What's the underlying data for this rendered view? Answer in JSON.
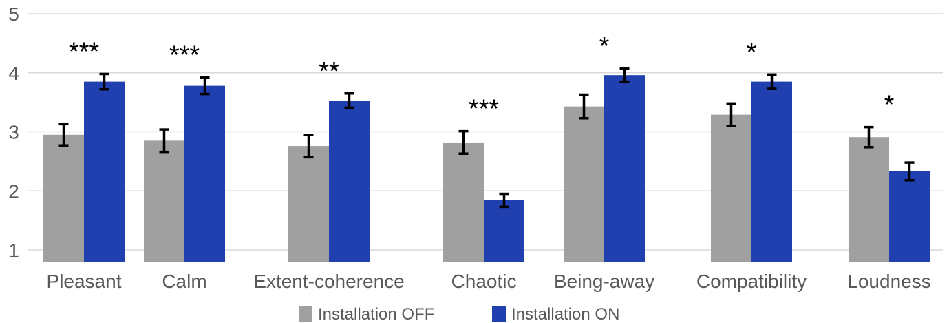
{
  "chart_data": {
    "type": "bar",
    "categories": [
      "Pleasant",
      "Calm",
      "Extent-coherence",
      "Chaotic",
      "Being-away",
      "Compatibility",
      "Loudness"
    ],
    "series": [
      {
        "name": "Installation OFF",
        "color": "#a0a0a0",
        "values": [
          2.95,
          2.85,
          2.76,
          2.82,
          3.43,
          3.29,
          2.91
        ],
        "error": [
          0.18,
          0.19,
          0.19,
          0.19,
          0.2,
          0.19,
          0.17
        ]
      },
      {
        "name": "Installation ON",
        "color": "#2140b0",
        "values": [
          3.85,
          3.78,
          3.53,
          1.84,
          3.96,
          3.85,
          2.33
        ],
        "error": [
          0.13,
          0.14,
          0.12,
          0.11,
          0.11,
          0.12,
          0.15
        ]
      }
    ],
    "significance": [
      "***",
      "***",
      "**",
      "***",
      "*",
      "*",
      "*"
    ],
    "y_ticks": [
      "1",
      "2",
      "3",
      "4",
      "5"
    ],
    "ylim": [
      1,
      5
    ],
    "grid": true,
    "legend_position": "bottom",
    "title": "",
    "xlabel": "",
    "ylabel": ""
  }
}
